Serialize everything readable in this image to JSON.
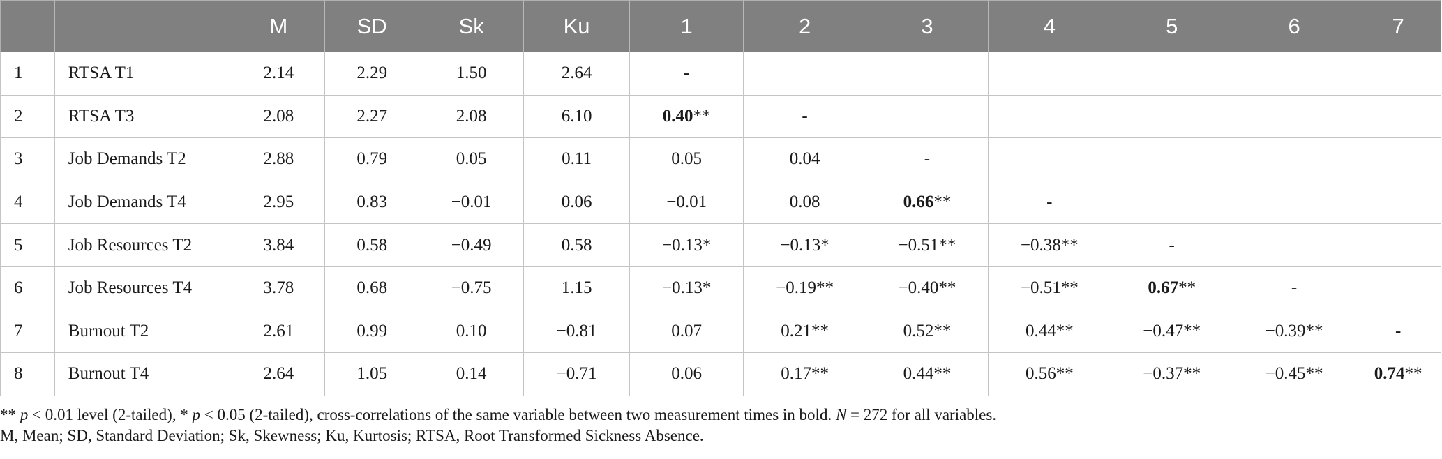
{
  "table": {
    "headers": [
      "",
      "",
      "M",
      "SD",
      "Sk",
      "Ku",
      "1",
      "2",
      "3",
      "4",
      "5",
      "6",
      "7"
    ],
    "rows": [
      {
        "num": "1",
        "variable": "RTSA T1",
        "M": "2.14",
        "SD": "2.29",
        "Sk": "1.50",
        "Ku": "2.64",
        "c": [
          {
            "v": "-",
            "s": ""
          },
          {
            "v": "",
            "s": ""
          },
          {
            "v": "",
            "s": ""
          },
          {
            "v": "",
            "s": ""
          },
          {
            "v": "",
            "s": ""
          },
          {
            "v": "",
            "s": ""
          },
          {
            "v": "",
            "s": ""
          }
        ]
      },
      {
        "num": "2",
        "variable": "RTSA T3",
        "M": "2.08",
        "SD": "2.27",
        "Sk": "2.08",
        "Ku": "6.10",
        "c": [
          {
            "v": "0.40",
            "s": "**",
            "bold": true
          },
          {
            "v": "-",
            "s": ""
          },
          {
            "v": "",
            "s": ""
          },
          {
            "v": "",
            "s": ""
          },
          {
            "v": "",
            "s": ""
          },
          {
            "v": "",
            "s": ""
          },
          {
            "v": "",
            "s": ""
          }
        ]
      },
      {
        "num": "3",
        "variable": "Job Demands T2",
        "M": "2.88",
        "SD": "0.79",
        "Sk": "0.05",
        "Ku": "0.11",
        "c": [
          {
            "v": "0.05",
            "s": ""
          },
          {
            "v": "0.04",
            "s": ""
          },
          {
            "v": "-",
            "s": ""
          },
          {
            "v": "",
            "s": ""
          },
          {
            "v": "",
            "s": ""
          },
          {
            "v": "",
            "s": ""
          },
          {
            "v": "",
            "s": ""
          }
        ]
      },
      {
        "num": "4",
        "variable": "Job Demands T4",
        "M": "2.95",
        "SD": "0.83",
        "Sk": "−0.01",
        "Ku": "0.06",
        "c": [
          {
            "v": "−0.01",
            "s": ""
          },
          {
            "v": "0.08",
            "s": ""
          },
          {
            "v": "0.66",
            "s": "**",
            "bold": true
          },
          {
            "v": "-",
            "s": ""
          },
          {
            "v": "",
            "s": ""
          },
          {
            "v": "",
            "s": ""
          },
          {
            "v": "",
            "s": ""
          }
        ]
      },
      {
        "num": "5",
        "variable": "Job Resources T2",
        "M": "3.84",
        "SD": "0.58",
        "Sk": "−0.49",
        "Ku": "0.58",
        "c": [
          {
            "v": "−0.13",
            "s": "*"
          },
          {
            "v": "−0.13",
            "s": "*"
          },
          {
            "v": "−0.51",
            "s": "**"
          },
          {
            "v": "−0.38",
            "s": "**"
          },
          {
            "v": "-",
            "s": ""
          },
          {
            "v": "",
            "s": ""
          },
          {
            "v": "",
            "s": ""
          }
        ]
      },
      {
        "num": "6",
        "variable": "Job Resources T4",
        "M": "3.78",
        "SD": "0.68",
        "Sk": "−0.75",
        "Ku": "1.15",
        "c": [
          {
            "v": "−0.13",
            "s": "*"
          },
          {
            "v": "−0.19",
            "s": "**"
          },
          {
            "v": "−0.40",
            "s": "**"
          },
          {
            "v": "−0.51",
            "s": "**"
          },
          {
            "v": "0.67",
            "s": "**",
            "bold": true
          },
          {
            "v": "-",
            "s": ""
          },
          {
            "v": "",
            "s": ""
          }
        ]
      },
      {
        "num": "7",
        "variable": "Burnout T2",
        "M": "2.61",
        "SD": "0.99",
        "Sk": "0.10",
        "Ku": "−0.81",
        "c": [
          {
            "v": "0.07",
            "s": ""
          },
          {
            "v": "0.21",
            "s": "**"
          },
          {
            "v": "0.52",
            "s": "**"
          },
          {
            "v": "0.44",
            "s": "**"
          },
          {
            "v": "−0.47",
            "s": "**"
          },
          {
            "v": "−0.39",
            "s": "**"
          },
          {
            "v": "-",
            "s": ""
          }
        ]
      },
      {
        "num": "8",
        "variable": "Burnout T4",
        "M": "2.64",
        "SD": "1.05",
        "Sk": "0.14",
        "Ku": "−0.71",
        "c": [
          {
            "v": "0.06",
            "s": ""
          },
          {
            "v": "0.17",
            "s": "**"
          },
          {
            "v": "0.44",
            "s": "**"
          },
          {
            "v": "0.56",
            "s": "**"
          },
          {
            "v": "−0.37",
            "s": "**"
          },
          {
            "v": "−0.45",
            "s": "**"
          },
          {
            "v": "0.74",
            "s": "**",
            "bold": true
          }
        ]
      }
    ]
  },
  "notes": {
    "line1": {
      "p1_stars": "** ",
      "p1_p": "p",
      "p1_text": " < 0.01 level (2-tailed), * ",
      "p2_p": "p",
      "p2_text": " < 0.05 (2-tailed), cross-correlations of the same variable between two measurement times in bold. ",
      "n_label": "N",
      "n_text": " = 272 for all variables."
    },
    "line2": "M, Mean; SD, Standard Deviation; Sk, Skewness; Ku, Kurtosis; RTSA, Root Transformed Sickness Absence."
  }
}
